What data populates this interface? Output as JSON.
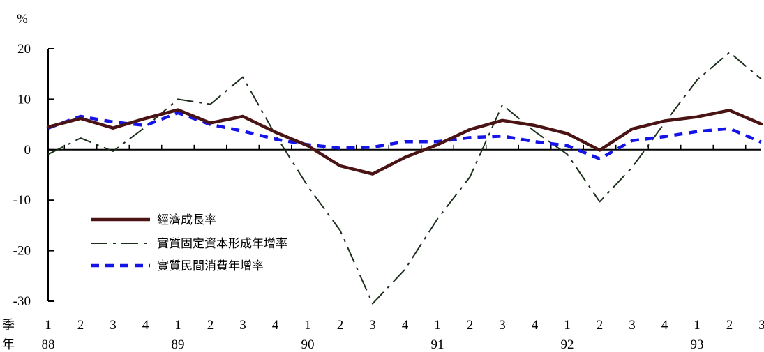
{
  "chart_data": {
    "type": "line",
    "ylabel": "%",
    "ylim": [
      -30,
      20
    ],
    "yticks": [
      "20",
      "10",
      "0",
      "-10",
      "-20",
      "-30"
    ],
    "row_labels": {
      "quarter": "季",
      "year": "年"
    },
    "quarters": [
      "1",
      "2",
      "3",
      "4",
      "1",
      "2",
      "3",
      "4",
      "1",
      "2",
      "3",
      "4",
      "1",
      "2",
      "3",
      "4",
      "1",
      "2",
      "3",
      "4",
      "1",
      "2",
      "3"
    ],
    "years": [
      {
        "label": "88",
        "index": 0
      },
      {
        "label": "89",
        "index": 4
      },
      {
        "label": "90",
        "index": 8
      },
      {
        "label": "91",
        "index": 12
      },
      {
        "label": "92",
        "index": 16
      },
      {
        "label": "93",
        "index": 20
      }
    ],
    "grid": false,
    "legend_position": "lower-left",
    "series": [
      {
        "name": "經濟成長率",
        "style": "solid",
        "color": "#4a1414",
        "values": [
          4.5,
          6.2,
          4.3,
          6.2,
          7.9,
          5.3,
          6.6,
          3.5,
          0.8,
          -3.2,
          -4.8,
          -1.5,
          1.0,
          4.0,
          5.8,
          4.8,
          3.2,
          -0.1,
          4.1,
          5.7,
          6.5,
          7.8,
          5.1
        ]
      },
      {
        "name": "實質固定資本形成年增率",
        "style": "dashdot",
        "color": "#1a2e1a",
        "values": [
          -0.9,
          2.3,
          -0.3,
          4.5,
          10.0,
          9.0,
          14.4,
          3.0,
          -7.2,
          -16.0,
          -30.5,
          -23.7,
          -13.7,
          -5.4,
          8.9,
          3.6,
          -0.9,
          -10.3,
          -3.5,
          5.3,
          13.8,
          19.3,
          14.0
        ]
      },
      {
        "name": "實質民間消費年增率",
        "style": "dashed",
        "color": "#1414e6",
        "values": [
          4.3,
          6.6,
          5.5,
          4.8,
          7.3,
          5.0,
          3.7,
          2.1,
          1.0,
          0.3,
          0.5,
          1.6,
          1.6,
          2.4,
          2.7,
          1.6,
          0.8,
          -1.8,
          1.8,
          2.6,
          3.6,
          4.2,
          1.5
        ]
      }
    ]
  }
}
